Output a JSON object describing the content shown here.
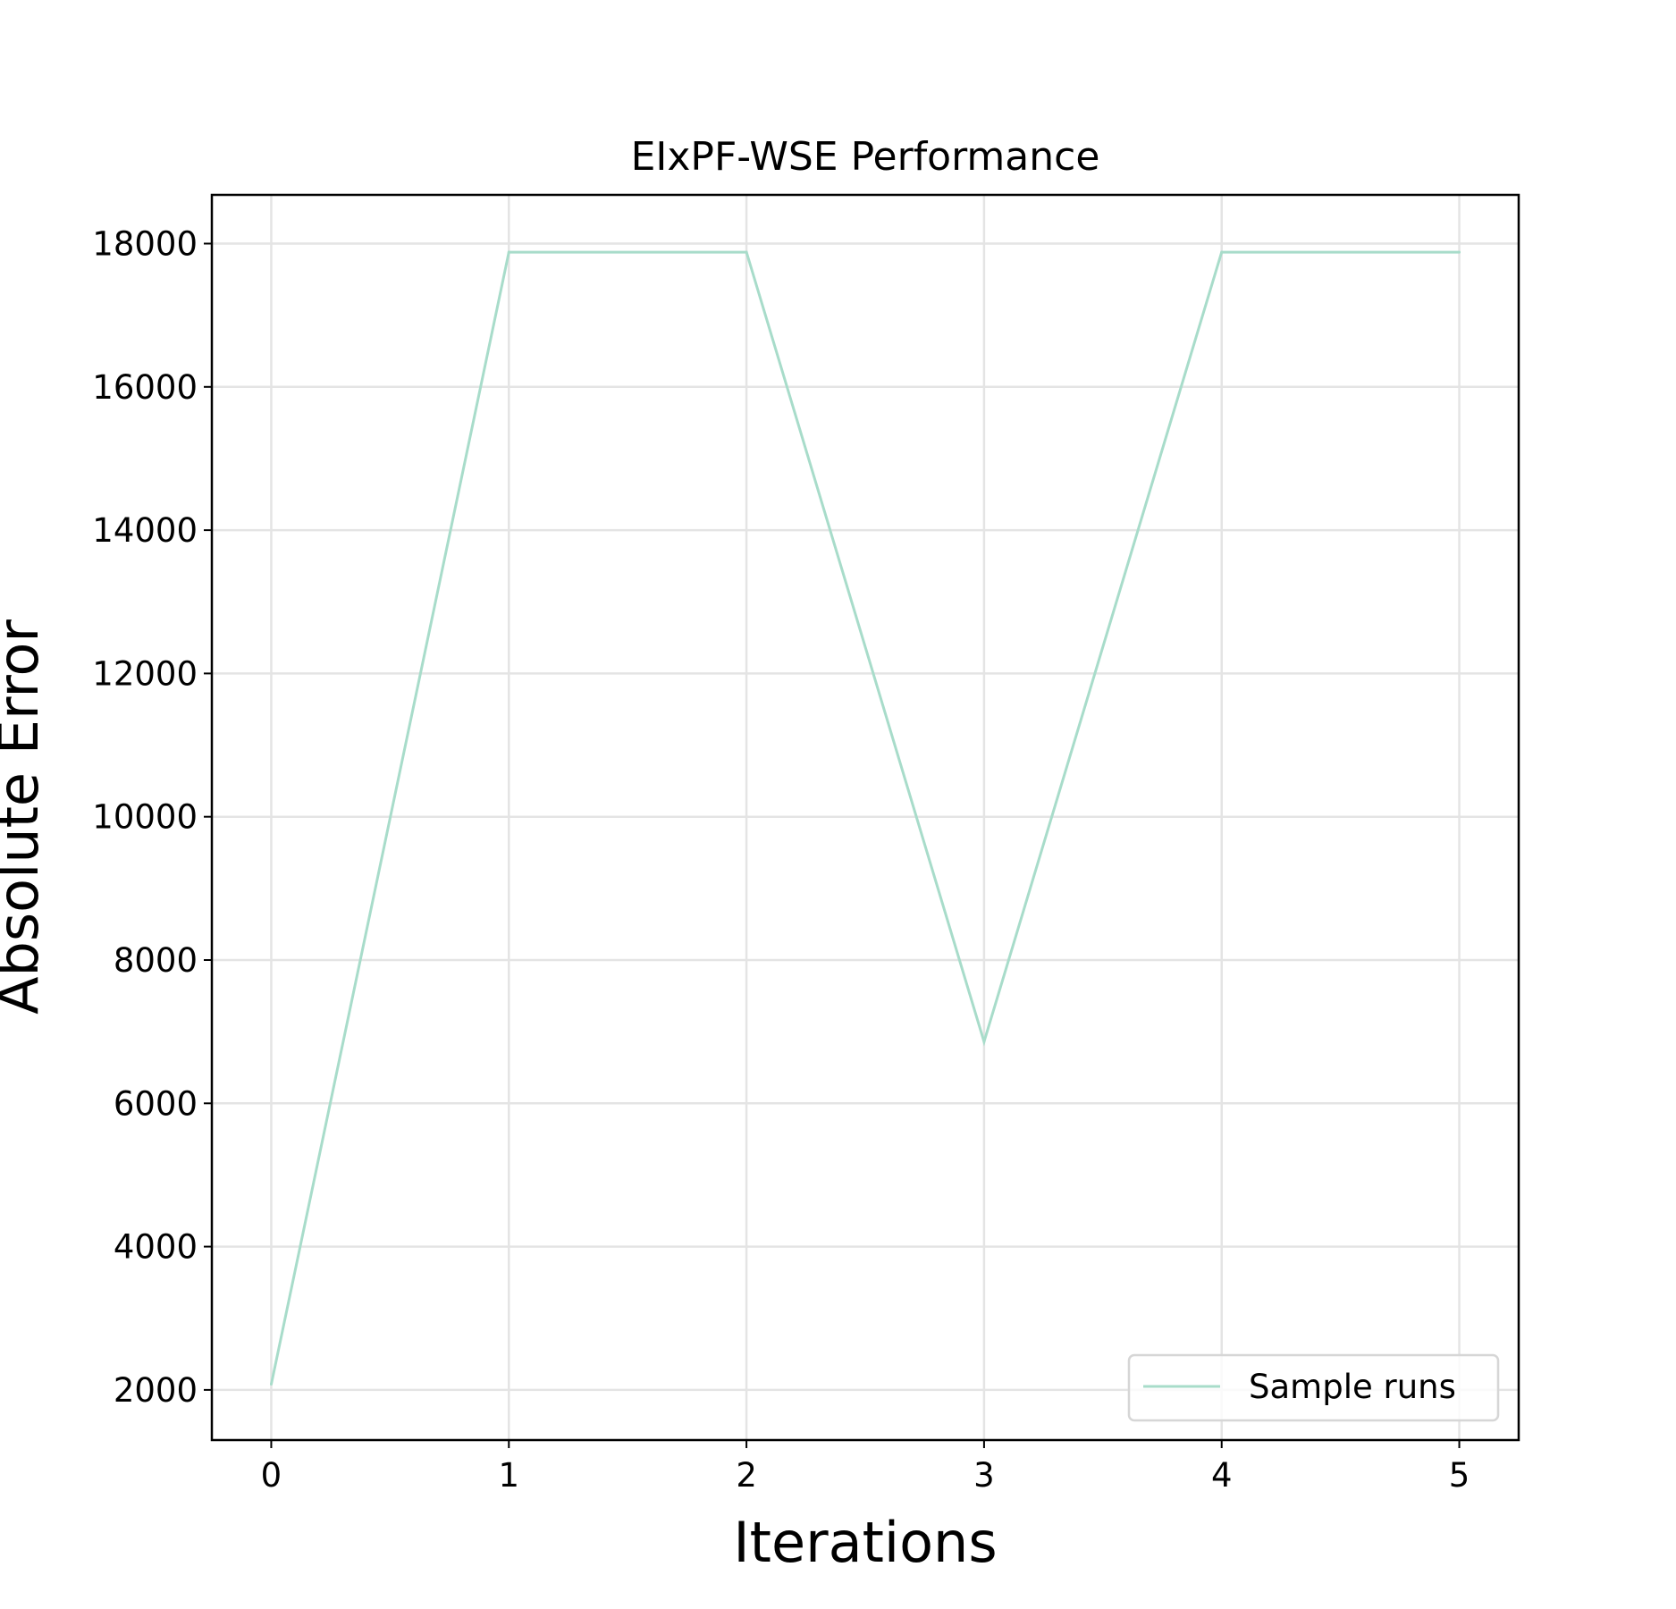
{
  "chart_data": {
    "type": "line",
    "title": "EIxPF-WSE Performance",
    "xlabel": "Iterations",
    "ylabel": "Absolute Error",
    "x": [
      0,
      1,
      2,
      3,
      4,
      5
    ],
    "x_ticks": [
      "0",
      "1",
      "2",
      "3",
      "4",
      "5"
    ],
    "y_ticks": [
      "2000",
      "4000",
      "6000",
      "8000",
      "10000",
      "12000",
      "14000",
      "16000",
      "18000"
    ],
    "xlim": [
      -0.25,
      5.25
    ],
    "ylim": [
      1300,
      18680
    ],
    "grid": true,
    "legend_position": "lower-right",
    "series": [
      {
        "name": "Sample runs",
        "color": "#a8dcca",
        "values": [
          2080,
          17880,
          17880,
          6860,
          17880,
          17880
        ]
      }
    ]
  }
}
